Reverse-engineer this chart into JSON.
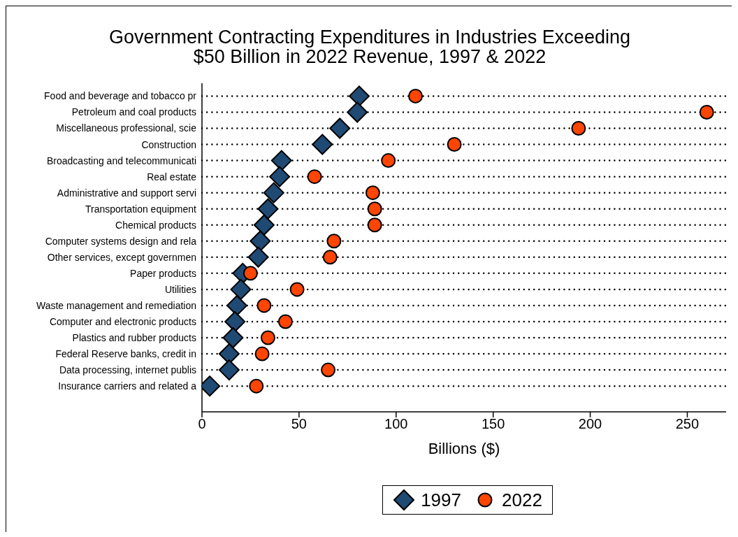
{
  "chart_data": {
    "type": "scatter",
    "title": "Government Contracting Expenditures in Industries Exceeding\n$50 Billion in 2022 Revenue, 1997 & 2022",
    "xlabel": "Billions ($)",
    "categories": [
      "Food and beverage and tobacco pr",
      "Petroleum and coal products",
      "Miscellaneous professional, scie",
      "Construction",
      "Broadcasting and telecommunicati",
      "Real estate",
      "Administrative and support servi",
      "Transportation equipment",
      "Chemical products",
      "Computer systems design and rela",
      "Other services, except governmen",
      "Paper products",
      "Utilities",
      "Waste management and remediation",
      "Computer and electronic products",
      "Plastics and rubber products",
      "Federal Reserve banks, credit in",
      "Data processing, internet publis",
      "Insurance carriers and related a"
    ],
    "series": [
      {
        "name": "1997",
        "color": "#1f4a73",
        "marker": "diamond",
        "values": [
          81,
          80,
          71,
          62,
          41,
          40,
          37,
          34,
          32,
          30,
          29,
          21,
          20,
          18,
          17,
          16,
          14,
          14,
          4
        ]
      },
      {
        "name": "2022",
        "color": "#ff4500",
        "marker": "circle",
        "values": [
          110,
          260,
          194,
          130,
          96,
          58,
          88,
          89,
          89,
          68,
          66,
          25,
          49,
          32,
          43,
          34,
          31,
          65,
          28
        ]
      }
    ],
    "xlim": [
      0,
      270
    ],
    "xticks": [
      0,
      50,
      100,
      150,
      200,
      250
    ],
    "grid": "y",
    "legend": "bottom",
    "orientation": "horizontal"
  }
}
